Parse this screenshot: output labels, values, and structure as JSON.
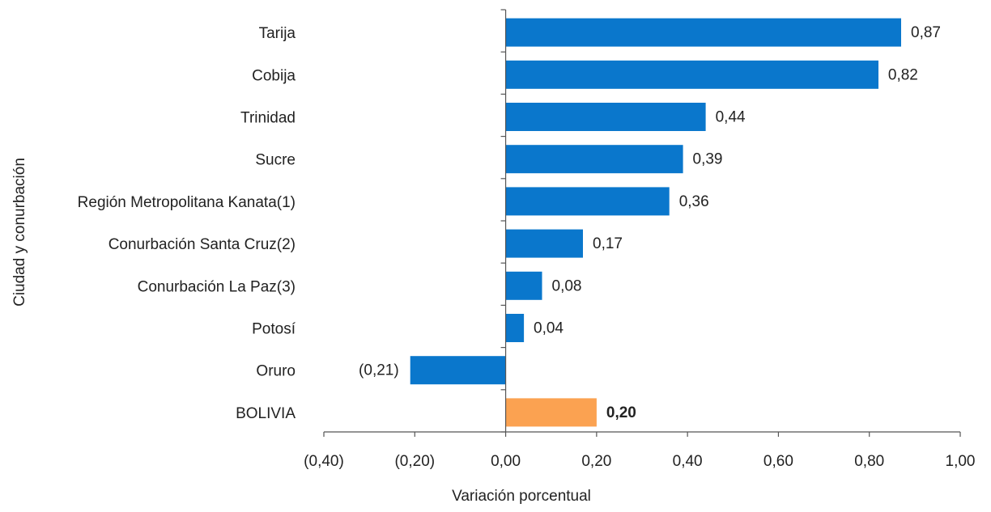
{
  "chart_data": {
    "type": "bar",
    "orientation": "horizontal",
    "title": "",
    "xlabel": "Variación porcentual",
    "ylabel": "Ciudad y conurbación",
    "xlim": [
      -0.4,
      1.0
    ],
    "x_ticks": [
      -0.4,
      -0.2,
      0.0,
      0.2,
      0.4,
      0.6,
      0.8,
      1.0
    ],
    "x_tick_labels": [
      "(0,40)",
      "(0,20)",
      "0,00",
      "0,20",
      "0,40",
      "0,60",
      "0,80",
      "1,00"
    ],
    "grid": false,
    "legend": "none",
    "colors": {
      "default": "#0a77cc",
      "highlight": "#fba251",
      "axis": "#555555"
    },
    "bars": [
      {
        "category": "Tarija",
        "value": 0.87,
        "label": "0,87",
        "highlight": false
      },
      {
        "category": "Cobija",
        "value": 0.82,
        "label": "0,82",
        "highlight": false
      },
      {
        "category": "Trinidad",
        "value": 0.44,
        "label": "0,44",
        "highlight": false
      },
      {
        "category": "Sucre",
        "value": 0.39,
        "label": "0,39",
        "highlight": false
      },
      {
        "category": "Región Metropolitana Kanata(1)",
        "value": 0.36,
        "label": "0,36",
        "highlight": false
      },
      {
        "category": "Conurbación Santa Cruz(2)",
        "value": 0.17,
        "label": "0,17",
        "highlight": false
      },
      {
        "category": "Conurbación La Paz(3)",
        "value": 0.08,
        "label": "0,08",
        "highlight": false
      },
      {
        "category": "Potosí",
        "value": 0.04,
        "label": "0,04",
        "highlight": false
      },
      {
        "category": "Oruro",
        "value": -0.21,
        "label": "(0,21)",
        "highlight": false
      },
      {
        "category": "BOLIVIA",
        "value": 0.2,
        "label": "0,20",
        "highlight": true
      }
    ]
  }
}
